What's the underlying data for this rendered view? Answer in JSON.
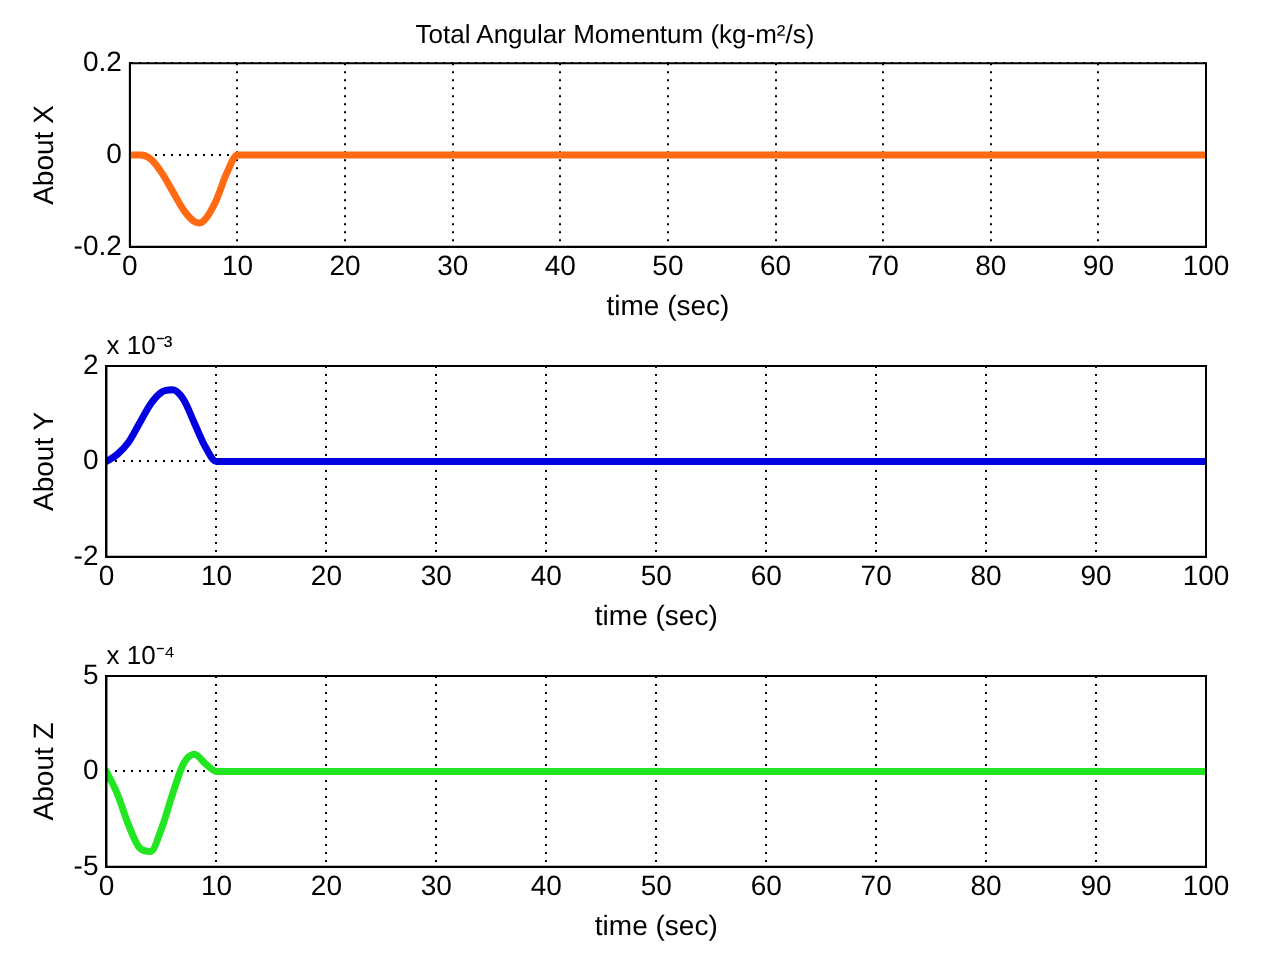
{
  "chart_data": [
    {
      "type": "line",
      "title": "Total Angular Momentum (kg-m²/s)",
      "xlabel": "time (sec)",
      "ylabel": "About X",
      "x": [
        0,
        1,
        2,
        3,
        4,
        5,
        6,
        6.5,
        7,
        8,
        9,
        10,
        100
      ],
      "series": [
        {
          "color": "#ff6a13",
          "values": [
            0,
            0,
            -0.01,
            -0.04,
            -0.08,
            -0.12,
            -0.145,
            -0.148,
            -0.14,
            -0.1,
            -0.04,
            0,
            0
          ]
        }
      ],
      "xlim": [
        0,
        100
      ],
      "xticks": [
        0,
        10,
        20,
        30,
        40,
        50,
        60,
        70,
        80,
        90,
        100
      ],
      "ylim": [
        -0.2,
        0.2
      ],
      "yticks": [
        -0.2,
        0,
        0.2
      ],
      "grid": true,
      "legend": false,
      "marker": "none",
      "line_style": "solid"
    },
    {
      "type": "line",
      "xlabel": "time (sec)",
      "ylabel": "About Y",
      "annotations": [
        "x 10⁻³"
      ],
      "x": [
        0,
        1,
        2,
        3,
        4,
        5,
        6,
        7,
        8,
        9,
        10,
        100
      ],
      "series": [
        {
          "color": "#0000e0",
          "values": [
            0,
            0.15,
            0.4,
            0.8,
            1.2,
            1.45,
            1.5,
            1.3,
            0.8,
            0.3,
            0,
            0
          ]
        }
      ],
      "xlim": [
        0,
        100
      ],
      "xticks": [
        0,
        10,
        20,
        30,
        40,
        50,
        60,
        70,
        80,
        90,
        100
      ],
      "ylim": [
        -2,
        2
      ],
      "yticks": [
        -2,
        0,
        2
      ],
      "grid": true,
      "legend": false,
      "marker": "none",
      "line_style": "solid"
    },
    {
      "type": "line",
      "xlabel": "time (sec)",
      "ylabel": "About Z",
      "annotations": [
        "x 10⁻⁴"
      ],
      "x": [
        0,
        1,
        2,
        3,
        4,
        5,
        6,
        7,
        8,
        9,
        10,
        100
      ],
      "series": [
        {
          "color": "#22e622",
          "values": [
            0,
            -1.2,
            -2.8,
            -4,
            -4.2,
            -3,
            -1.2,
            0.4,
            0.9,
            0.4,
            0,
            0
          ]
        }
      ],
      "xlim": [
        0,
        100
      ],
      "xticks": [
        0,
        10,
        20,
        30,
        40,
        50,
        60,
        70,
        80,
        90,
        100
      ],
      "ylim": [
        -5,
        5
      ],
      "yticks": [
        -5,
        0,
        5
      ],
      "grid": true,
      "legend": false,
      "marker": "none",
      "line_style": "solid"
    }
  ]
}
